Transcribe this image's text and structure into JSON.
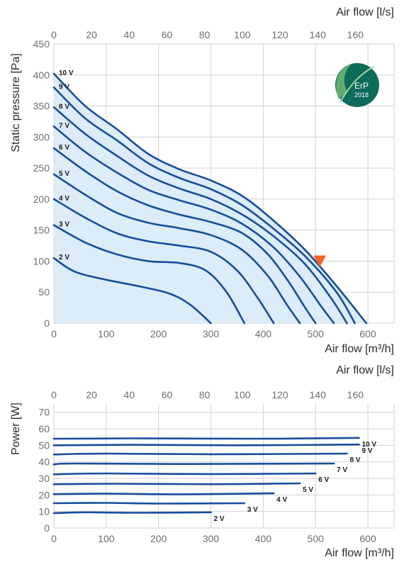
{
  "colors": {
    "curve": "#164e9c",
    "fill": "#dcecf8",
    "grid": "#d2d2d2",
    "marker": "#f26522",
    "badge": "#0d6b5a"
  },
  "badge": {
    "line1": "ErP",
    "line2": "2018",
    "icon": "leaf-icon"
  },
  "chart_data": [
    {
      "type": "line",
      "grid": true,
      "x_top_label": "Air flow [l/s]",
      "x_top_ticks": [
        "0",
        "20",
        "40",
        "60",
        "80",
        "100",
        "120",
        "140",
        "160"
      ],
      "x_top_lim": [
        0,
        166.67
      ],
      "xlabel": "Air flow [m³/h]",
      "xlim": [
        0,
        650
      ],
      "x_ticks": [
        "0",
        "100",
        "200",
        "300",
        "400",
        "500",
        "600"
      ],
      "ylabel": "Static pressure [Pa]",
      "ylim": [
        0,
        450
      ],
      "y_ticks": [
        "0",
        "50",
        "100",
        "150",
        "200",
        "250",
        "300",
        "350",
        "400",
        "450"
      ],
      "series": [
        {
          "name": "2 V",
          "points": [
            [
              0,
              105
            ],
            [
              40,
              83
            ],
            [
              100,
              70
            ],
            [
              160,
              60
            ],
            [
              220,
              48
            ],
            [
              260,
              30
            ],
            [
              300,
              0
            ]
          ]
        },
        {
          "name": "3 V",
          "points": [
            [
              0,
              158
            ],
            [
              60,
              130
            ],
            [
              120,
              111
            ],
            [
              180,
              100
            ],
            [
              240,
              97
            ],
            [
              290,
              85
            ],
            [
              330,
              50
            ],
            [
              364,
              0
            ]
          ]
        },
        {
          "name": "4 V",
          "points": [
            [
              0,
              200
            ],
            [
              60,
              170
            ],
            [
              120,
              145
            ],
            [
              180,
              132
            ],
            [
              240,
              125
            ],
            [
              300,
              115
            ],
            [
              350,
              85
            ],
            [
              390,
              40
            ],
            [
              420,
              0
            ]
          ]
        },
        {
          "name": "5 V",
          "points": [
            [
              0,
              240
            ],
            [
              60,
              207
            ],
            [
              120,
              178
            ],
            [
              180,
              162
            ],
            [
              240,
              153
            ],
            [
              300,
              142
            ],
            [
              360,
              118
            ],
            [
              410,
              75
            ],
            [
              445,
              30
            ],
            [
              470,
              0
            ]
          ]
        },
        {
          "name": "6 V",
          "points": [
            [
              0,
              282
            ],
            [
              60,
              245
            ],
            [
              120,
              213
            ],
            [
              180,
              190
            ],
            [
              240,
              175
            ],
            [
              300,
              163
            ],
            [
              360,
              145
            ],
            [
              410,
              110
            ],
            [
              450,
              65
            ],
            [
              480,
              25
            ],
            [
              500,
              0
            ]
          ]
        },
        {
          "name": "7 V",
          "points": [
            [
              0,
              317
            ],
            [
              60,
              276
            ],
            [
              120,
              243
            ],
            [
              180,
              215
            ],
            [
              240,
              198
            ],
            [
              300,
              183
            ],
            [
              360,
              160
            ],
            [
              420,
              122
            ],
            [
              470,
              75
            ],
            [
              510,
              28
            ],
            [
              535,
              0
            ]
          ]
        },
        {
          "name": "8 V",
          "points": [
            [
              0,
              348
            ],
            [
              60,
              305
            ],
            [
              120,
              270
            ],
            [
              180,
              238
            ],
            [
              240,
              217
            ],
            [
              300,
              200
            ],
            [
              360,
              175
            ],
            [
              420,
              140
            ],
            [
              480,
              95
            ],
            [
              530,
              40
            ],
            [
              560,
              0
            ]
          ]
        },
        {
          "name": "9 V",
          "points": [
            [
              0,
              380
            ],
            [
              60,
              330
            ],
            [
              120,
              295
            ],
            [
              180,
              258
            ],
            [
              240,
              234
            ],
            [
              300,
              216
            ],
            [
              360,
              190
            ],
            [
              420,
              152
            ],
            [
              480,
              108
            ],
            [
              540,
              50
            ],
            [
              575,
              0
            ]
          ]
        },
        {
          "name": "10 V",
          "points": [
            [
              0,
              402
            ],
            [
              60,
              350
            ],
            [
              120,
              313
            ],
            [
              180,
              273
            ],
            [
              240,
              248
            ],
            [
              300,
              230
            ],
            [
              360,
              205
            ],
            [
              420,
              165
            ],
            [
              480,
              118
            ],
            [
              540,
              60
            ],
            [
              597,
              0
            ]
          ]
        }
      ],
      "marker": {
        "x": 508,
        "y": 100,
        "symbol": "triangle-down-icon"
      }
    },
    {
      "type": "line",
      "grid": true,
      "x_top_label": "Air flow [l/s]",
      "x_top_ticks": [
        "0",
        "20",
        "40",
        "60",
        "80",
        "100",
        "120",
        "140",
        "160"
      ],
      "x_top_lim": [
        0,
        166.67
      ],
      "xlabel": "Air flow [m³/h]",
      "xlim": [
        0,
        650
      ],
      "x_ticks": [
        "0",
        "100",
        "200",
        "300",
        "400",
        "500",
        "600"
      ],
      "ylabel": "Power [W]",
      "ylim": [
        0,
        75
      ],
      "y_ticks": [
        "0",
        "10",
        "20",
        "30",
        "40",
        "50",
        "60",
        "70"
      ],
      "series": [
        {
          "name": "2 V",
          "points": [
            [
              0,
              9
            ],
            [
              60,
              9.5
            ],
            [
              150,
              9.2
            ],
            [
              300,
              9.5
            ]
          ]
        },
        {
          "name": "3 V",
          "points": [
            [
              0,
              15
            ],
            [
              100,
              15.2
            ],
            [
              200,
              14.8
            ],
            [
              364,
              15
            ]
          ]
        },
        {
          "name": "4 V",
          "points": [
            [
              0,
              20.5
            ],
            [
              100,
              20.8
            ],
            [
              250,
              20.4
            ],
            [
              420,
              21
            ]
          ]
        },
        {
          "name": "5 V",
          "points": [
            [
              0,
              26.5
            ],
            [
              120,
              26.8
            ],
            [
              300,
              26.5
            ],
            [
              470,
              27
            ]
          ]
        },
        {
          "name": "6 V",
          "points": [
            [
              0,
              32.5
            ],
            [
              100,
              33
            ],
            [
              300,
              32.6
            ],
            [
              500,
              33
            ]
          ]
        },
        {
          "name": "7 V",
          "points": [
            [
              0,
              38.5
            ],
            [
              40,
              39
            ],
            [
              250,
              38.7
            ],
            [
              535,
              39
            ]
          ]
        },
        {
          "name": "8 V",
          "points": [
            [
              0,
              44.5
            ],
            [
              100,
              45
            ],
            [
              300,
              44.6
            ],
            [
              560,
              45
            ]
          ]
        },
        {
          "name": "9 V",
          "points": [
            [
              0,
              50
            ],
            [
              150,
              50.3
            ],
            [
              350,
              50
            ],
            [
              583,
              50.5
            ]
          ]
        },
        {
          "name": "10 V",
          "points": [
            [
              0,
              54
            ],
            [
              150,
              54.2
            ],
            [
              400,
              54
            ],
            [
              583,
              54.5
            ]
          ]
        }
      ]
    }
  ]
}
